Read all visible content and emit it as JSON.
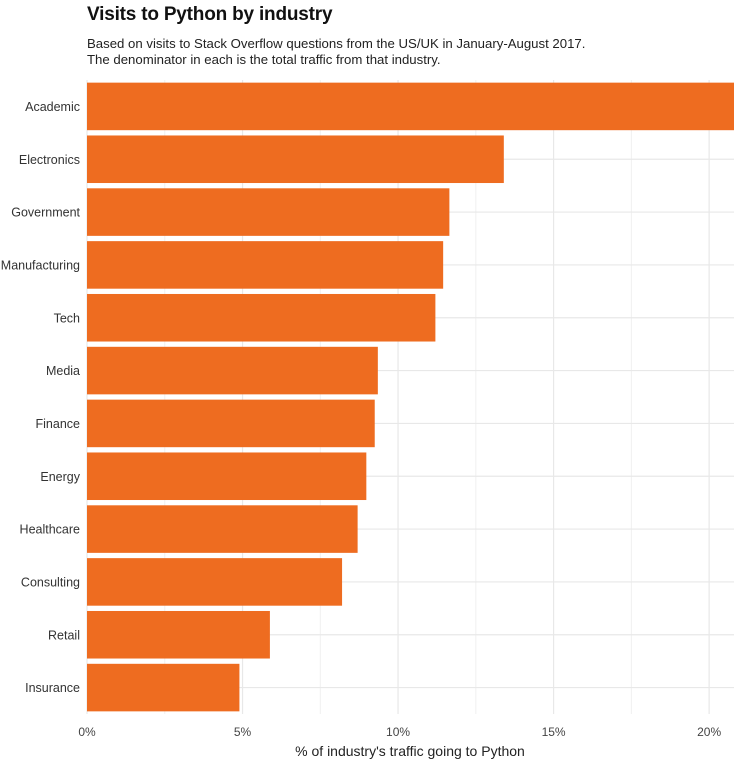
{
  "header": {
    "title": "Visits to Python by industry",
    "subtitle_lines": [
      "Based on visits to Stack Overflow questions from the US/UK in January-August 2017.",
      "The denominator in each is the total traffic from that industry."
    ]
  },
  "chart_data": {
    "type": "bar",
    "orientation": "horizontal",
    "title": "Visits to Python by industry",
    "xlabel": "% of industry's traffic going to Python",
    "ylabel": "",
    "categories": [
      "Academic",
      "Electronics",
      "Government",
      "Manufacturing",
      "Tech",
      "Media",
      "Finance",
      "Energy",
      "Healthcare",
      "Consulting",
      "Retail",
      "Insurance"
    ],
    "values": [
      20.8,
      13.4,
      11.65,
      11.45,
      11.2,
      9.35,
      9.25,
      8.98,
      8.7,
      8.2,
      5.88,
      4.9
    ],
    "xlim": [
      0,
      20.8
    ],
    "xticks": [
      0,
      5,
      10,
      15,
      20
    ],
    "xtick_labels": [
      "0%",
      "5%",
      "10%",
      "15%",
      "20%"
    ],
    "grid": true,
    "legend": "none",
    "colors": {
      "bar": "#EE6C20",
      "grid": "#e8e8e8",
      "text": "#333333"
    }
  }
}
